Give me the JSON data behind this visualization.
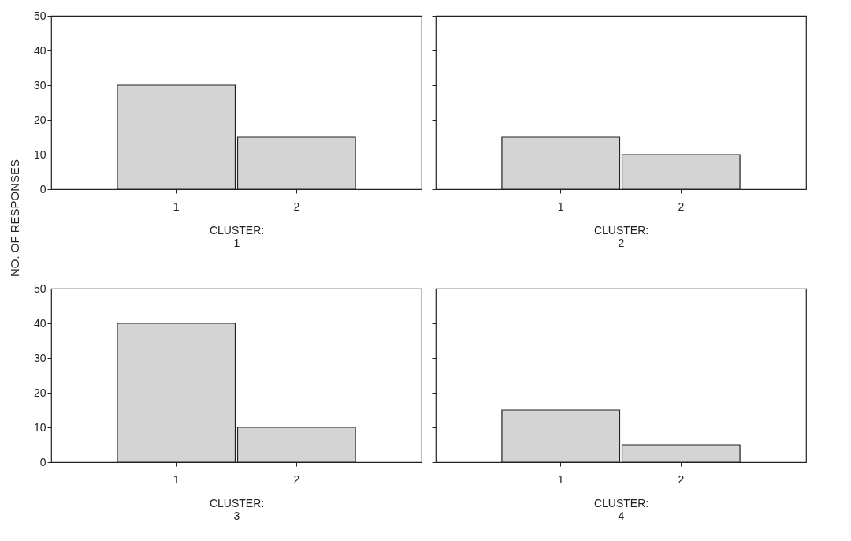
{
  "chart_data": [
    {
      "type": "bar",
      "categories": [
        "1",
        "2"
      ],
      "values": [
        30,
        15
      ],
      "color": "#d4d4d4",
      "xlabel": "CLUSTER:\n1",
      "ylabel": "NO. OF RESPONSES",
      "ylim": [
        0,
        50
      ],
      "yticks": [
        0,
        10,
        20,
        30,
        40,
        50
      ],
      "grid": false
    },
    {
      "type": "bar",
      "categories": [
        "1",
        "2"
      ],
      "values": [
        15,
        10
      ],
      "color": "#d4d4d4",
      "xlabel": "CLUSTER:\n2",
      "ylim": [
        0,
        50
      ],
      "yticks": [
        0,
        10,
        20,
        30,
        40,
        50
      ],
      "grid": false,
      "tick_labels": "x"
    },
    {
      "type": "bar",
      "categories": [
        "1",
        "2"
      ],
      "values": [
        40,
        10
      ],
      "color": "#d4d4d4",
      "xlabel": "CLUSTER:\n3",
      "ylim": [
        0,
        50
      ],
      "yticks": [
        0,
        10,
        20,
        30,
        40,
        50
      ],
      "grid": false
    },
    {
      "type": "bar",
      "categories": [
        "1",
        "2"
      ],
      "values": [
        15,
        5
      ],
      "color": "#d4d4d4",
      "xlabel": "CLUSTER:\n4",
      "ylim": [
        0,
        50
      ],
      "yticks": [
        0,
        10,
        20,
        30,
        40,
        50
      ],
      "grid": false,
      "tick_labels": "x"
    }
  ]
}
